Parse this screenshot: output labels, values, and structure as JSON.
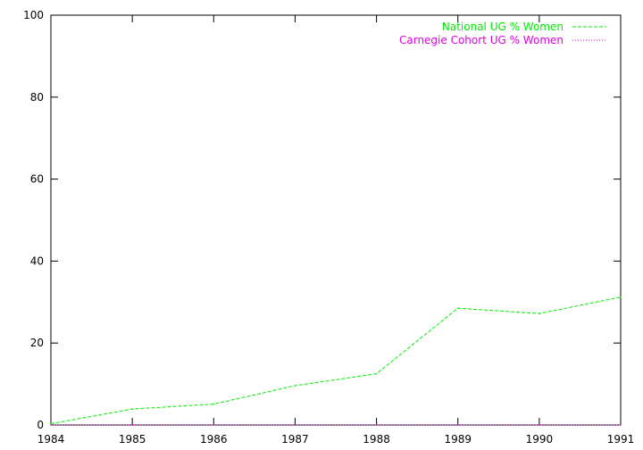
{
  "chart_data": {
    "type": "line",
    "title": "",
    "xlabel": "",
    "ylabel": "",
    "x": [
      1984,
      1985,
      1986,
      1987,
      1988,
      1989,
      1990,
      1991
    ],
    "xlim": [
      1984,
      1991
    ],
    "ylim": [
      0,
      100
    ],
    "x_ticks": [
      "1984",
      "1985",
      "1986",
      "1987",
      "1988",
      "1989",
      "1990",
      "1991"
    ],
    "y_ticks": [
      "0",
      "20",
      "40",
      "60",
      "80",
      "100"
    ],
    "grid": false,
    "legend_position": "top-right",
    "series": [
      {
        "name": "National UG % Women",
        "color": "#00ee00",
        "dash": "dashed",
        "values": [
          0.3,
          3.9,
          5.1,
          9.6,
          12.5,
          28.5,
          27.2,
          31.2
        ]
      },
      {
        "name": "Carnegie Cohort UG % Women",
        "color": "#dd00dd",
        "dash": "dotted",
        "values": [
          0,
          0,
          0,
          0,
          0,
          0,
          0,
          0
        ]
      }
    ]
  }
}
